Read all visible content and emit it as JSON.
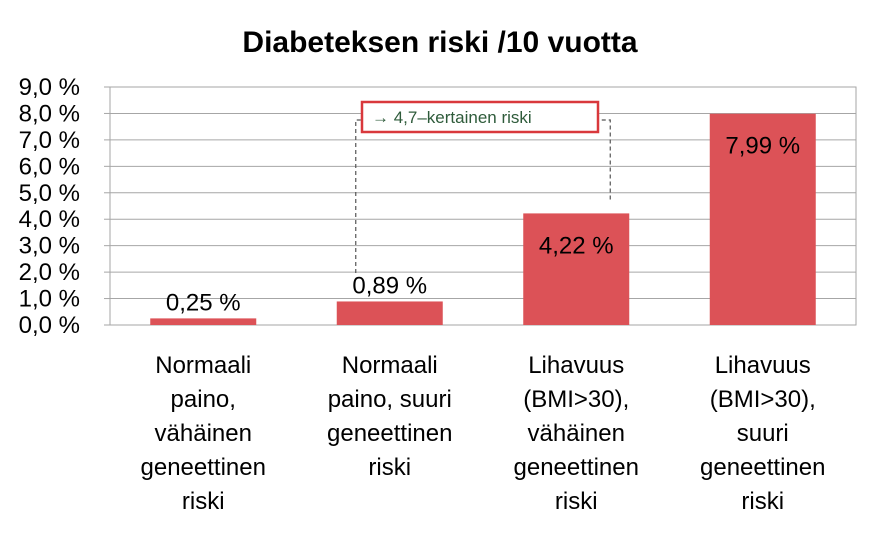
{
  "chart_data": {
    "type": "bar",
    "title": "Diabeteksen riski /10 vuotta",
    "categories": [
      [
        "Normaali",
        "paino,",
        "vähäinen",
        "geneettinen",
        "riski"
      ],
      [
        "Normaali",
        "paino, suuri",
        "geneettinen",
        "riski"
      ],
      [
        "Lihavuus",
        "(BMI>30),",
        "vähäinen",
        "geneettinen",
        "riski"
      ],
      [
        "Lihavuus",
        "(BMI>30),",
        "suuri",
        "geneettinen",
        "riski"
      ]
    ],
    "values": [
      0.25,
      0.89,
      4.22,
      7.99
    ],
    "value_labels": [
      "0,25 %",
      "0,89 %",
      "4,22 %",
      "7,99 %"
    ],
    "ylim": [
      0,
      9
    ],
    "yticks": [
      0,
      1,
      2,
      3,
      4,
      5,
      6,
      7,
      8,
      9
    ],
    "ytick_labels": [
      "0,0 %",
      "1,0 %",
      "2,0 %",
      "3,0 %",
      "4,0 %",
      "5,0 %",
      "6,0 %",
      "7,0 %",
      "8,0 %",
      "9,0 %"
    ],
    "grid": true,
    "bar_color": "#dc5257",
    "annotation": {
      "text": "→ 4,7–kertainen riski",
      "from_category": 1,
      "to_category": 2,
      "border_color": "#d9383c",
      "text_color": "#2e5b3a"
    }
  }
}
